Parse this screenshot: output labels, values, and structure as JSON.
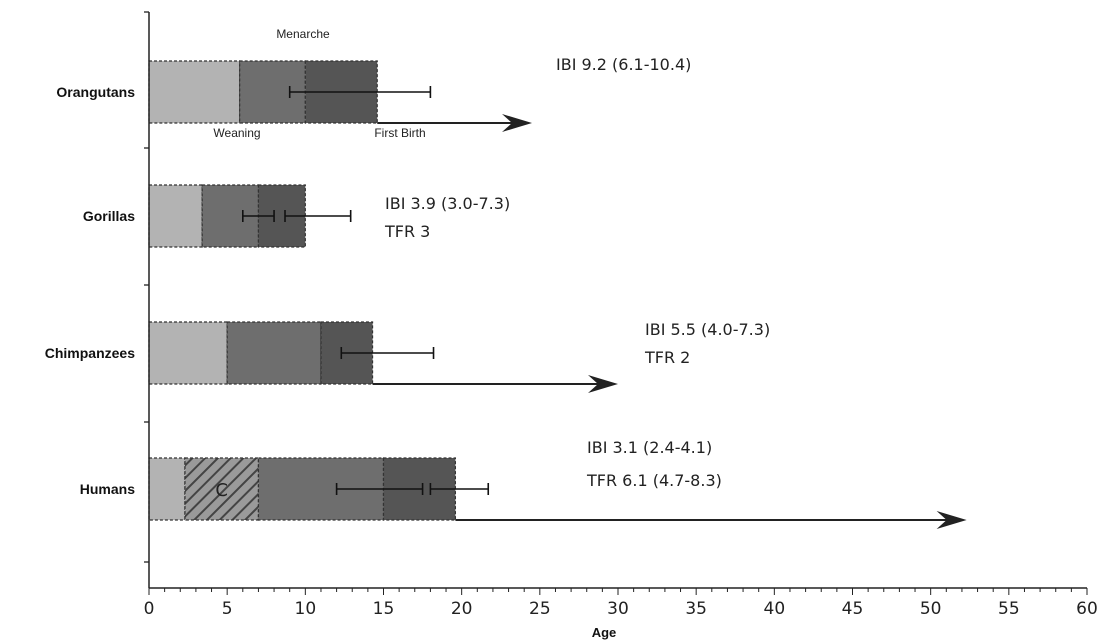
{
  "chart_data": {
    "type": "bar",
    "orientation": "horizontal",
    "xlabel": "Age",
    "xlim": [
      0,
      60
    ],
    "xticks": [
      0,
      5,
      10,
      15,
      20,
      25,
      30,
      35,
      40,
      45,
      50,
      55,
      60
    ],
    "grid": false,
    "stage_annotations": {
      "top": "Menarche",
      "bottom_left": "Weaning",
      "bottom_right": "First Birth",
      "hatched_label": "C"
    },
    "colors": {
      "light": "#b3b3b3",
      "mid": "#6e6e6e",
      "dark": "#555555",
      "hatch_bg": "#9a9a9a",
      "axis": "#222222"
    },
    "groups": [
      {
        "name": "Orangutans",
        "segments": [
          {
            "start": 0,
            "end": 5.8,
            "shade": "light"
          },
          {
            "start": 5.8,
            "end": 10,
            "shade": "mid"
          },
          {
            "start": 10,
            "end": 14.6,
            "shade": "dark"
          }
        ],
        "error_bars": [
          {
            "low": 9,
            "high": 18
          }
        ],
        "arrow_end": 24.5,
        "annotations": [
          "IBI 9.2 (6.1-10.4)"
        ]
      },
      {
        "name": "Gorillas",
        "segments": [
          {
            "start": 0,
            "end": 3.4,
            "shade": "light"
          },
          {
            "start": 3.4,
            "end": 7,
            "shade": "mid"
          },
          {
            "start": 7,
            "end": 10,
            "shade": "dark"
          }
        ],
        "error_bars": [
          {
            "low": 6,
            "high": 8
          },
          {
            "low": 8.7,
            "high": 12.9
          }
        ],
        "arrow_end": null,
        "annotations": [
          "IBI 3.9 (3.0-7.3)",
          "TFR 3"
        ]
      },
      {
        "name": "Chimpanzees",
        "segments": [
          {
            "start": 0,
            "end": 5,
            "shade": "light"
          },
          {
            "start": 5,
            "end": 11,
            "shade": "mid"
          },
          {
            "start": 11,
            "end": 14.3,
            "shade": "dark"
          }
        ],
        "error_bars": [
          {
            "low": 12.3,
            "high": 18.2
          }
        ],
        "arrow_end": 30,
        "annotations": [
          "IBI 5.5 (4.0-7.3)",
          "TFR 2"
        ]
      },
      {
        "name": "Humans",
        "segments": [
          {
            "start": 0,
            "end": 2.3,
            "shade": "light"
          },
          {
            "start": 2.3,
            "end": 7,
            "shade": "hatch"
          },
          {
            "start": 7,
            "end": 15,
            "shade": "mid"
          },
          {
            "start": 15,
            "end": 19.6,
            "shade": "dark"
          }
        ],
        "error_bars": [
          {
            "low": 12,
            "high": 17.5
          },
          {
            "low": 18,
            "high": 21.7
          }
        ],
        "arrow_end": 52.3,
        "annotations": [
          "IBI 3.1 (2.4-4.1)",
          "TFR 6.1 (4.7-8.3)"
        ]
      }
    ]
  }
}
